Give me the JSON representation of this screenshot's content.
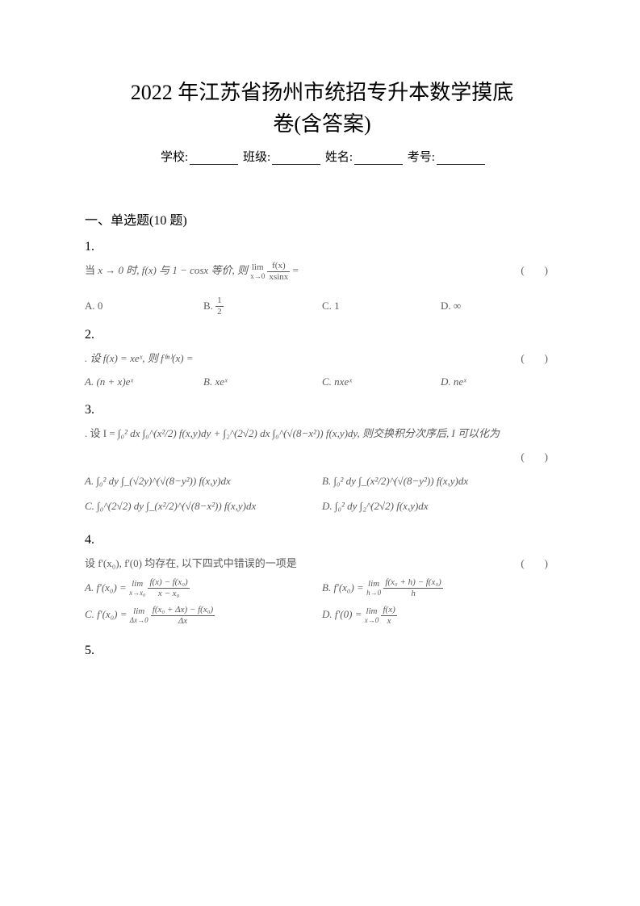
{
  "title_line1": "2022 年江苏省扬州市统招专升本数学摸底",
  "title_line2": "卷(含答案)",
  "form": {
    "school": "学校:",
    "class": "班级:",
    "name": "姓名:",
    "exam_no": "考号:"
  },
  "section": "一、单选题(10 题)",
  "colors": {
    "text_primary": "#000000",
    "text_secondary": "#5a5a5a",
    "background": "#ffffff"
  },
  "fonts": {
    "title_size": 26,
    "section_size": 16,
    "body_size": 13
  },
  "questions": {
    "q1": {
      "number": "1.",
      "stem_prefix": "当 ",
      "stem_math": "x → 0 时, f(x) 与 1 − cosx 等价, 则",
      "limit_expr": "lim",
      "limit_sub": "x→0",
      "frac_num": "f(x)",
      "frac_den": "xsinx",
      "equals": " =",
      "paren": "(　)",
      "options": {
        "A": "A. 0",
        "B_label": "B. ",
        "B_num": "1",
        "B_den": "2",
        "C": "C. 1",
        "D": "D. ∞"
      }
    },
    "q2": {
      "number": "2.",
      "stem": ". 设 f(x) = xeˣ, 则 f⁽ⁿ⁾(x) =",
      "paren": "(　)",
      "options": {
        "A": "A. (n + x)eˣ",
        "B": "B. xeˣ",
        "C": "C. nxeˣ",
        "D": "D. neˣ"
      }
    },
    "q3": {
      "number": "3.",
      "stem_prefix": ". 设 I = ",
      "stem_body": "∫₀² dx ∫₀^(x²/2) f(x,y)dy + ∫₂^(2√2) dx ∫₀^(√(8−x²)) f(x,y)dy, 则交换积分次序后, I 可以化为",
      "paren": "(　)",
      "options": {
        "A": "A. ∫₀² dy ∫_(√2y)^(√(8−y²)) f(x,y)dx",
        "B": "B. ∫₀² dy ∫_(x²/2)^(√(8−y²)) f(x,y)dx",
        "C": "C. ∫₀^(2√2) dy ∫_(x²/2)^(√(8−x²)) f(x,y)dx",
        "D": "D. ∫₀² dy ∫₂^(2√2) f(x,y)dx"
      }
    },
    "q4": {
      "number": "4.",
      "stem": "设 f'(x₀), f'(0) 均存在, 以下四式中错误的一项是",
      "paren": "(　)",
      "options": {
        "A_label": "A. f'(x₀) = ",
        "A_lim": "lim",
        "A_sub": "x→x₀",
        "A_num": "f(x) − f(x₀)",
        "A_den": "x − x₀",
        "B_label": "B. f'(x₀) = ",
        "B_lim": "lim",
        "B_sub": "h→0",
        "B_num": "f(x₀ + h) − f(x₀)",
        "B_den": "h",
        "C_label": "C. f'(x₀) = ",
        "C_lim": "lim",
        "C_sub": "Δx→0",
        "C_num": "f(x₀ + Δx) − f(x₀)",
        "C_den": "Δx",
        "D_label": "D. f'(0) = ",
        "D_lim": "lim",
        "D_sub": "x→0",
        "D_num": "f(x)",
        "D_den": "x"
      }
    },
    "q5": {
      "number": "5."
    }
  }
}
